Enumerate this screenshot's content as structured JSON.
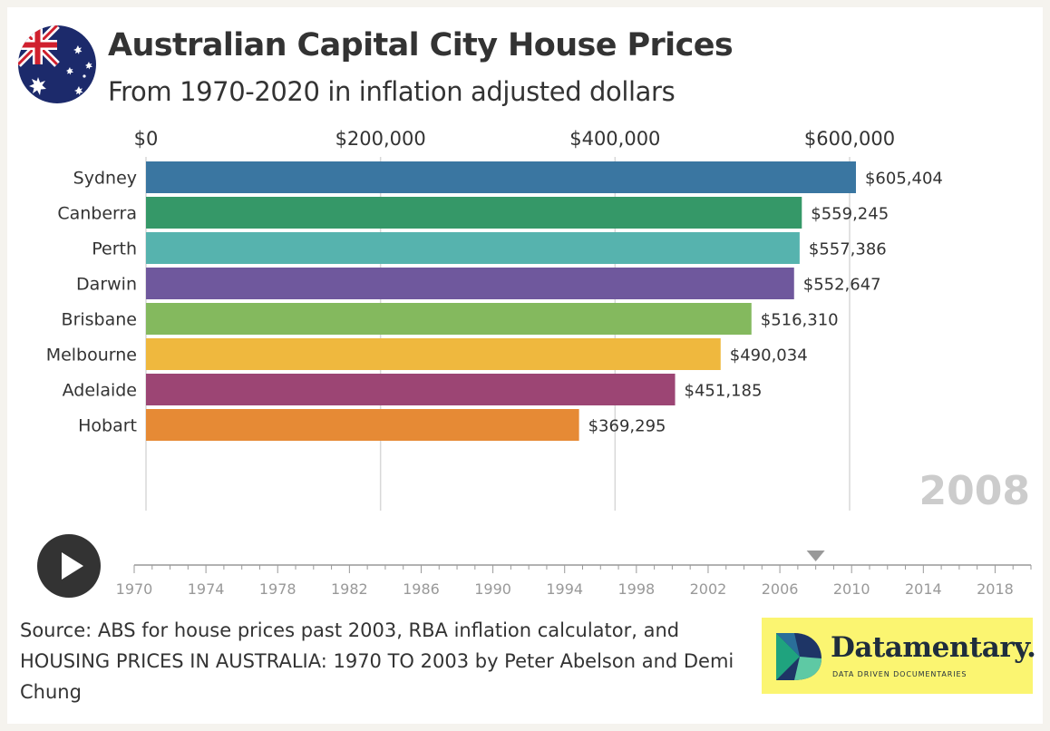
{
  "header": {
    "title": "Australian Capital City House Prices",
    "subtitle": "From 1970-2020 in inflation adjusted dollars"
  },
  "chart_data": {
    "type": "bar",
    "orientation": "horizontal",
    "title": "Australian Capital City House Prices",
    "subtitle": "From 1970-2020 in inflation adjusted dollars",
    "xlim": [
      0,
      600000
    ],
    "x_ticks": [
      0,
      200000,
      400000,
      600000
    ],
    "x_tick_labels": [
      "$0",
      "$200,000",
      "$400,000",
      "$600,000"
    ],
    "grid": true,
    "current_year": "2008",
    "categories": [
      "Sydney",
      "Canberra",
      "Perth",
      "Darwin",
      "Brisbane",
      "Melbourne",
      "Adelaide",
      "Hobart"
    ],
    "values": [
      605404,
      559245,
      557386,
      552647,
      516310,
      490034,
      451185,
      369295
    ],
    "value_labels": [
      "$605,404",
      "$559,245",
      "$557,386",
      "$552,647",
      "$516,310",
      "$490,034",
      "$451,185",
      "$369,295"
    ],
    "colors": [
      "#3a76a1",
      "#359868",
      "#56b3ae",
      "#6f589d",
      "#84b95e",
      "#efb83e",
      "#9c4574",
      "#e68a35"
    ]
  },
  "timeline": {
    "start_year": 1970,
    "end_year": 2020,
    "current_year": 2008,
    "labels": [
      "1970",
      "1974",
      "1978",
      "1982",
      "1986",
      "1990",
      "1994",
      "1998",
      "2002",
      "2006",
      "2010",
      "2014",
      "2018"
    ],
    "play_icon": "play-icon"
  },
  "source": {
    "text": "Source: ABS for house prices past 2003, RBA inflation calculator, and HOUSING PRICES IN AUSTRALIA: 1970 TO 2003 by Peter Abelson and Demi Chung"
  },
  "brand": {
    "name": "Datamentary.",
    "tagline": "DATA DRIVEN DOCUMENTARIES"
  },
  "colors": {
    "axis_text": "#333333",
    "year_watermark": "#cccccc",
    "timeline_text": "#999999"
  }
}
